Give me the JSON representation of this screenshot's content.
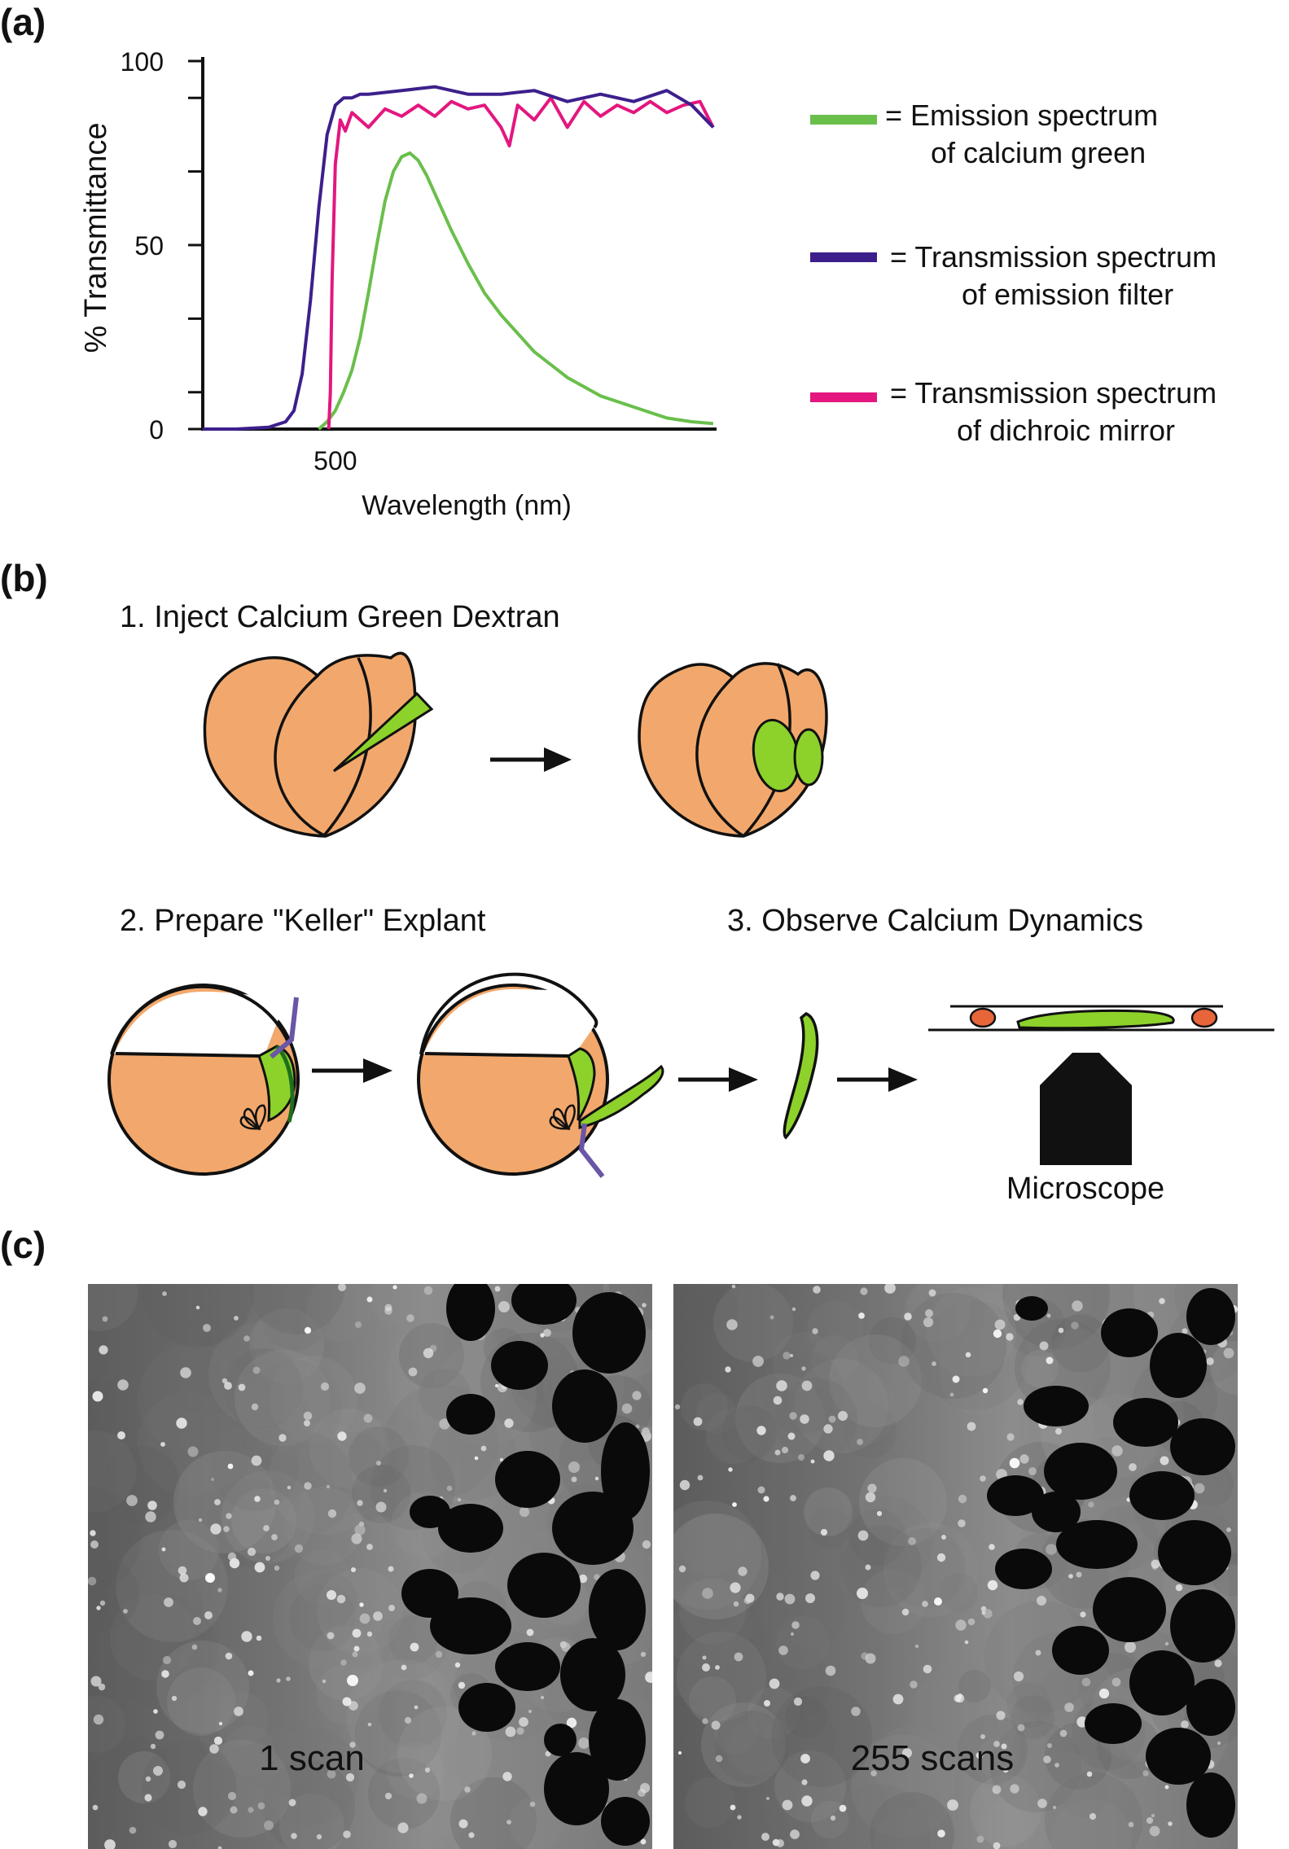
{
  "panels": {
    "a": "(a)",
    "b": "(b)",
    "c": "(c)"
  },
  "chart_data": {
    "type": "line",
    "xlabel": "Wavelength (nm)",
    "ylabel": "% Transmittance",
    "xtick_labels": [
      "500"
    ],
    "xtick_values": [
      500
    ],
    "ytick_labels": [
      "0",
      "50",
      "100"
    ],
    "ytick_values": [
      0,
      50,
      100
    ],
    "xlim": [
      420,
      730
    ],
    "ylim": [
      0,
      100
    ],
    "grid": false,
    "legend_position": "right",
    "series": [
      {
        "key": "emission",
        "legend": "= Emission spectrum\nof calcium green",
        "color": "#6abf4b",
        "x": [
          490,
          495,
          500,
          505,
          510,
          515,
          520,
          525,
          530,
          535,
          540,
          545,
          550,
          555,
          560,
          570,
          580,
          590,
          600,
          620,
          640,
          660,
          680,
          700,
          715,
          728
        ],
        "y": [
          0,
          2,
          5,
          10,
          16,
          25,
          37,
          50,
          62,
          70,
          74,
          75,
          73,
          69,
          64,
          54,
          45,
          37,
          31,
          21,
          14,
          9,
          6,
          3,
          2,
          1.5
        ]
      },
      {
        "key": "filter",
        "legend": "= Transmission spectrum\nof emission filter",
        "color": "#3d1f8c",
        "x": [
          420,
          440,
          460,
          470,
          475,
          480,
          485,
          490,
          495,
          500,
          505,
          510,
          515,
          520,
          540,
          560,
          580,
          600,
          620,
          640,
          660,
          680,
          700,
          715,
          728
        ],
        "y": [
          0,
          0,
          0.5,
          2,
          5,
          15,
          35,
          60,
          80,
          88,
          90,
          90,
          91,
          91,
          92,
          93,
          91,
          91,
          92,
          89,
          91,
          89,
          92,
          88,
          82
        ]
      },
      {
        "key": "dichroic",
        "legend": "= Transmission spectrum\nof dichroic mirror",
        "color": "#e3177f",
        "x": [
          496,
          497,
          498,
          500,
          503,
          506,
          510,
          520,
          530,
          540,
          550,
          560,
          570,
          580,
          590,
          600,
          605,
          610,
          620,
          630,
          640,
          650,
          660,
          670,
          680,
          690,
          700,
          710,
          720,
          728
        ],
        "y": [
          0,
          10,
          40,
          72,
          84,
          81,
          86,
          82,
          87,
          85,
          88,
          85,
          89,
          87,
          88,
          82,
          77,
          88,
          84,
          90,
          82,
          89,
          85,
          88,
          86,
          89,
          86,
          88,
          89,
          82
        ]
      }
    ]
  },
  "steps": {
    "step1": "1. Inject Calcium Green Dextran",
    "step2": "2.  Prepare \"Keller\" Explant",
    "step3": "3.  Observe Calcium Dynamics",
    "microscope": "Microscope"
  },
  "colors": {
    "embryo": "#f2a86c",
    "tissue": "#8dd12b",
    "blade": "#6a55a6",
    "bead": "#e8653a",
    "outline": "#111111"
  },
  "captions": {
    "left": "1 scan",
    "right": "255 scans"
  }
}
